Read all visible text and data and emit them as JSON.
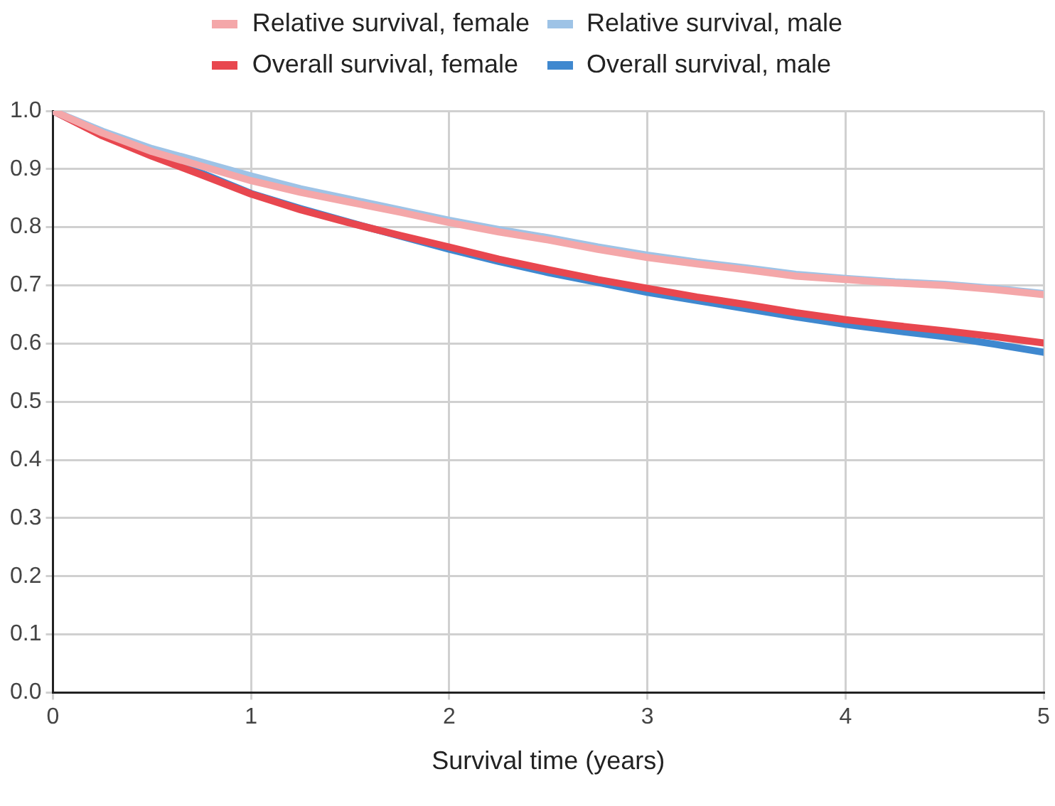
{
  "chart_data": {
    "type": "line",
    "xlabel": "Survival time (years)",
    "x": [
      0,
      0.25,
      0.5,
      0.75,
      1,
      1.25,
      1.5,
      1.75,
      2,
      2.25,
      2.5,
      2.75,
      3,
      3.25,
      3.5,
      3.75,
      4,
      4.25,
      4.5,
      4.75,
      5
    ],
    "series": [
      {
        "name": "Relative survival, female",
        "color": "#f4a7a9",
        "values": [
          1,
          0.962,
          0.93,
          0.905,
          0.88,
          0.86,
          0.843,
          0.826,
          0.808,
          0.792,
          0.778,
          0.762,
          0.748,
          0.737,
          0.727,
          0.716,
          0.71,
          0.704,
          0.7,
          0.693,
          0.684
        ]
      },
      {
        "name": "Relative survival, male",
        "color": "#9ec3e6",
        "values": [
          1,
          0.965,
          0.935,
          0.912,
          0.888,
          0.866,
          0.848,
          0.83,
          0.812,
          0.796,
          0.782,
          0.766,
          0.752,
          0.74,
          0.73,
          0.719,
          0.712,
          0.706,
          0.702,
          0.695,
          0.686
        ]
      },
      {
        "name": "Overall survival, female",
        "color": "#e8474f",
        "values": [
          1,
          0.957,
          0.922,
          0.89,
          0.857,
          0.83,
          0.807,
          0.786,
          0.766,
          0.745,
          0.727,
          0.71,
          0.695,
          0.68,
          0.667,
          0.653,
          0.641,
          0.631,
          0.622,
          0.612,
          0.601
        ]
      },
      {
        "name": "Overall survival, male",
        "color": "#3f88cf",
        "values": [
          1,
          0.958,
          0.924,
          0.893,
          0.858,
          0.832,
          0.808,
          0.785,
          0.762,
          0.741,
          0.722,
          0.705,
          0.688,
          0.674,
          0.66,
          0.646,
          0.633,
          0.622,
          0.612,
          0.599,
          0.585
        ]
      }
    ],
    "xlim": [
      0,
      5
    ],
    "xticks": [
      0,
      1,
      2,
      3,
      4,
      5
    ],
    "ylim": [
      0,
      1
    ],
    "yticks": [
      {
        "value": 0,
        "label": "0.0"
      },
      0.1,
      0.2,
      0.3,
      0.4,
      0.5,
      0.6,
      0.7,
      0.8,
      0.9,
      {
        "value": 1,
        "label": "1.0"
      }
    ],
    "grid": true,
    "legend": "top",
    "marker": "none",
    "line_style": "solid"
  }
}
